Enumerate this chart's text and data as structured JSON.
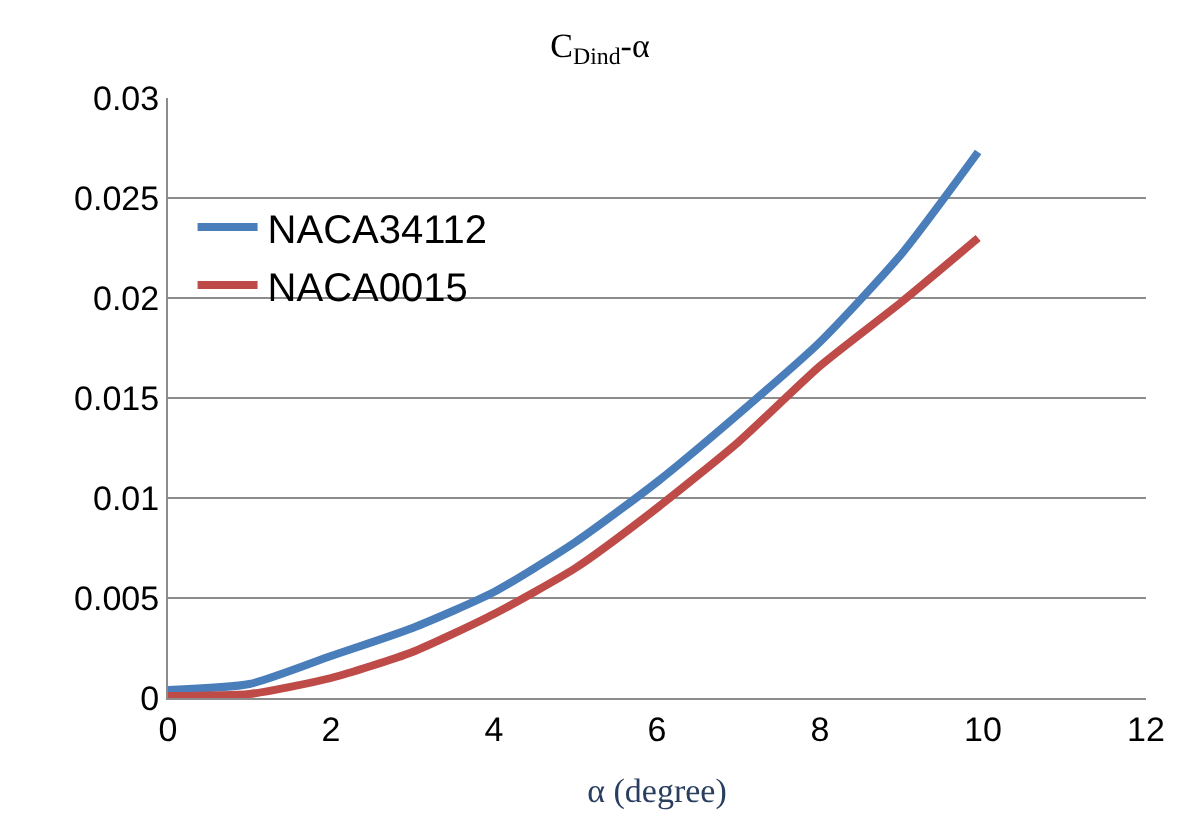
{
  "chart_data": {
    "type": "line",
    "title": "C$_{Dind}$-α",
    "xlabel": "α (degree)",
    "x": [
      0,
      1,
      2,
      3,
      4,
      5,
      6,
      7,
      8,
      9,
      9.94
    ],
    "series": [
      {
        "name": "NACA34112",
        "color": "#4a7ebb",
        "values": [
          0.0004,
          0.0007,
          0.0021,
          0.0035,
          0.0053,
          0.0078,
          0.0108,
          0.0142,
          0.0178,
          0.0222,
          0.0273
        ]
      },
      {
        "name": "NACA0015",
        "color": "#be4b48",
        "values": [
          0.0001,
          0.0002,
          0.001,
          0.0023,
          0.0042,
          0.0065,
          0.0095,
          0.0128,
          0.0166,
          0.0198,
          0.023
        ]
      }
    ],
    "xlim": [
      0,
      12
    ],
    "xticks": [
      0,
      2,
      4,
      6,
      8,
      10,
      12
    ],
    "ylim": [
      0,
      0.03
    ],
    "yticks": [
      0,
      0.005,
      0.01,
      0.015,
      0.02,
      0.025,
      0.03
    ],
    "grid": "y",
    "legend": "top left",
    "marker": "none",
    "line_style": "solid"
  }
}
